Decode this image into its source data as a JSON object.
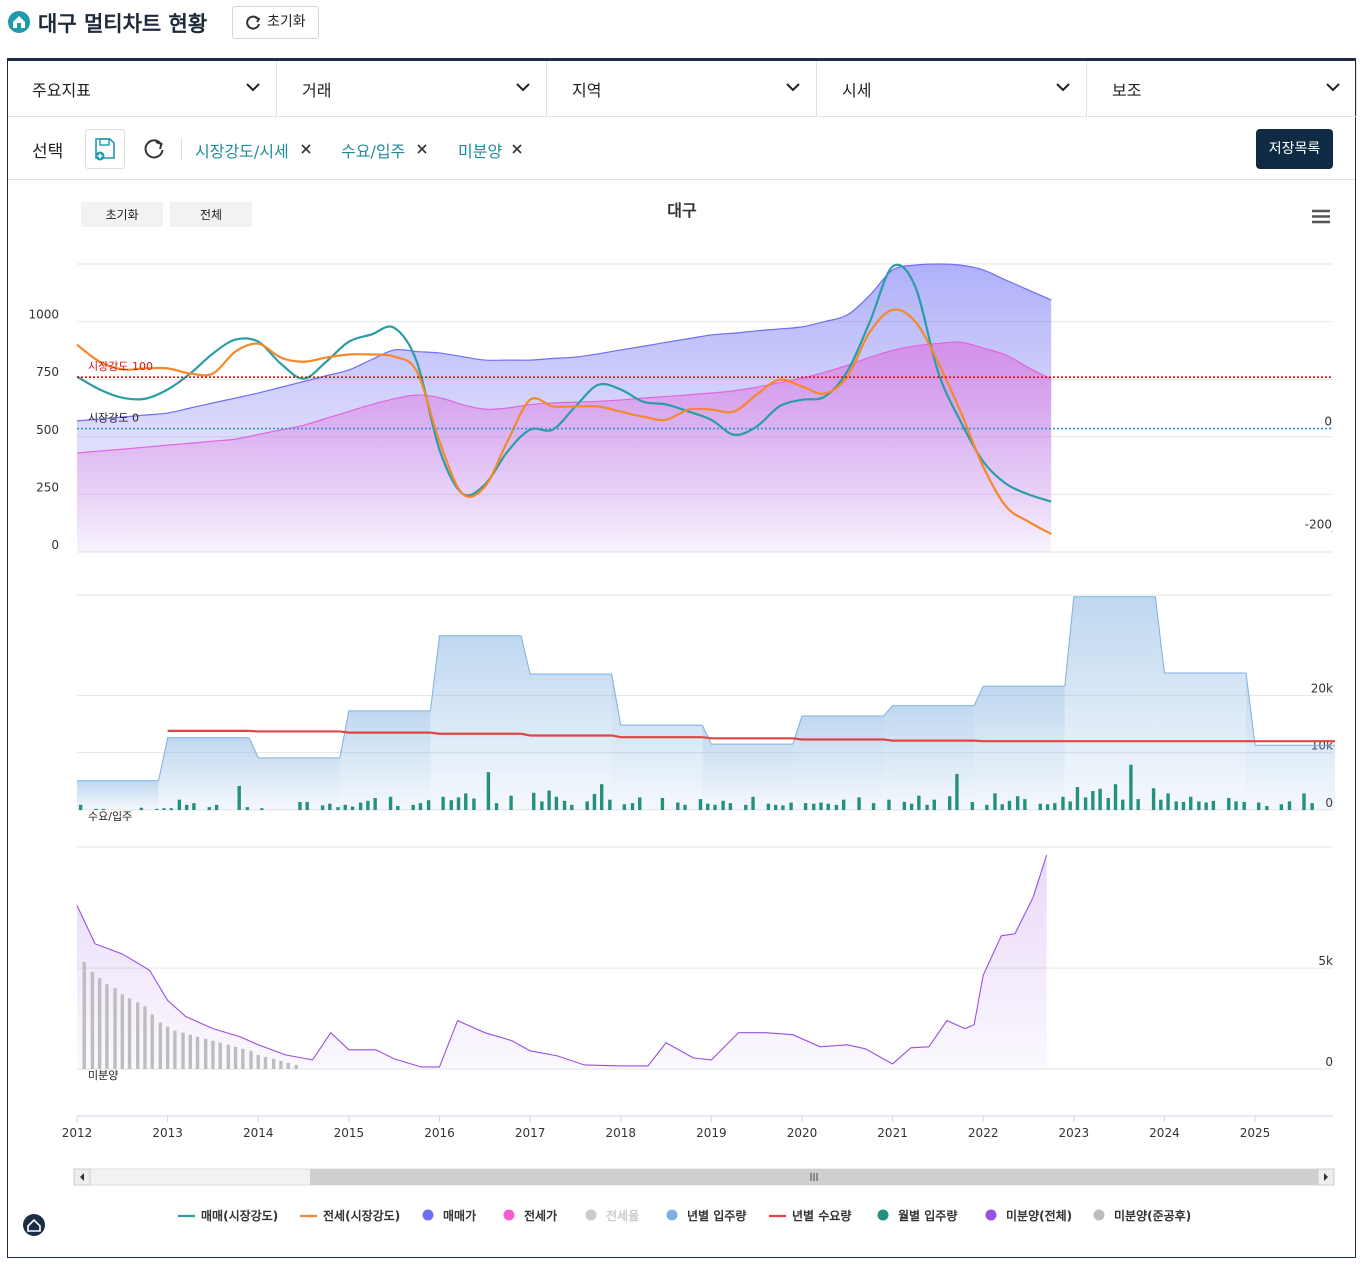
{
  "header": {
    "title": "대구 멀티차트 현황",
    "reset": "초기화"
  },
  "menus": [
    "주요지표",
    "거래",
    "지역",
    "시세",
    "보조"
  ],
  "selection": {
    "label": "선택",
    "tags": [
      "시장강도/시세",
      "수요/입주",
      "미분양"
    ],
    "saved": "저장목록"
  },
  "chart_data": {
    "type": "multi",
    "title": "대구",
    "buttons": [
      "초기화",
      "전체"
    ],
    "xlim": [
      2012,
      2025.86
    ],
    "xticks": [
      2012,
      2013,
      2014,
      2015,
      2016,
      2017,
      2018,
      2019,
      2020,
      2021,
      2022,
      2023,
      2024,
      2025
    ],
    "panels": [
      {
        "ylim": [
          0,
          1250
        ],
        "yticks": [
          0,
          250,
          500,
          750,
          1000
        ],
        "yaxis": "left",
        "y2lim": [
          -240,
          320
        ],
        "y2ticks": [
          -200,
          0
        ],
        "reference_lines": [
          {
            "value": 100,
            "label": "시장강도 100",
            "color": "#e01010",
            "axis": "y2"
          },
          {
            "value": 0,
            "label": "시장강도 0",
            "color": "#3a8fd8",
            "axis": "y2"
          }
        ],
        "x": [
          2012,
          2012.25,
          2012.5,
          2012.75,
          2013,
          2013.25,
          2013.5,
          2013.75,
          2014,
          2014.25,
          2014.5,
          2014.75,
          2015,
          2015.25,
          2015.5,
          2015.75,
          2016,
          2016.25,
          2016.5,
          2016.75,
          2017,
          2017.25,
          2017.5,
          2017.75,
          2018,
          2018.25,
          2018.5,
          2018.75,
          2019,
          2019.25,
          2019.5,
          2019.75,
          2020,
          2020.25,
          2020.5,
          2020.75,
          2021,
          2021.25,
          2021.5,
          2021.75,
          2022,
          2022.25,
          2022.5,
          2022.75
        ],
        "series": [
          {
            "type": "area",
            "smooth": true,
            "color": "#6f6ff5",
            "values": [
              569,
              577,
              586,
              594,
              603,
              625,
              647,
              668,
              690,
              715,
              740,
              765,
              790,
              835,
              877,
              870,
              864,
              848,
              833,
              833,
              833,
              840,
              846,
              860,
              877,
              893,
              910,
              926,
              942,
              950,
              960,
              968,
              977,
              1000,
              1029,
              1115,
              1224,
              1245,
              1250,
              1245,
              1224,
              1180,
              1137,
              1094
            ]
          },
          {
            "type": "area",
            "smooth": true,
            "color": "#e066dc",
            "values": [
              430,
              438,
              446,
              455,
              464,
              472,
              481,
              490,
              510,
              530,
              550,
              580,
              610,
              640,
              665,
              681,
              670,
              640,
              620,
              625,
              640,
              647,
              650,
              654,
              660,
              668,
              675,
              682,
              690,
              700,
              715,
              735,
              755,
              780,
              810,
              845,
              875,
              895,
              905,
              911,
              885,
              855,
              800,
              750
            ]
          },
          {
            "type": "line",
            "smooth": true,
            "axis": "y2",
            "color": "#2a9da6",
            "values": [
              101,
              76,
              60,
              58,
              76,
              107,
              146,
              173,
              169,
              126,
              97,
              130,
              169,
              183,
              196,
              130,
              -41,
              -126,
              -109,
              -45,
              -2,
              -2,
              43,
              85,
              76,
              52,
              47,
              33,
              17,
              -12,
              4,
              43,
              56,
              62,
              111,
              208,
              315,
              276,
              111,
              14,
              -64,
              -107,
              -128,
              -142
            ]
          },
          {
            "type": "line",
            "smooth": true,
            "axis": "y2",
            "color": "#f5892a",
            "values": [
              163,
              130,
              115,
              117,
              117,
              107,
              107,
              150,
              165,
              138,
              130,
              138,
              144,
              144,
              140,
              111,
              -25,
              -126,
              -113,
              -25,
              56,
              43,
              43,
              43,
              33,
              23,
              17,
              37,
              37,
              33,
              66,
              95,
              82,
              68,
              101,
              188,
              231,
              208,
              130,
              33,
              -74,
              -151,
              -181,
              -205
            ]
          }
        ]
      },
      {
        "ylim": [
          0,
          37500
        ],
        "yticks": [
          0,
          {
            "value": 10000,
            "label": "10k"
          },
          {
            "value": 20000,
            "label": "20k"
          }
        ],
        "yaxis": "right",
        "annotation": "수요/입주",
        "x": [
          2012,
          2013,
          2014,
          2015,
          2016,
          2017,
          2018,
          2019,
          2020,
          2021,
          2022,
          2023,
          2024,
          2025
        ],
        "series": [
          {
            "type": "step",
            "fill": true,
            "color": "#7fb0e0",
            "values": [
              5100,
              12600,
              9100,
              17300,
              30400,
              23700,
              14800,
              11500,
              16400,
              18200,
              21600,
              37200,
              23900,
              11300
            ]
          },
          {
            "type": "step",
            "fill": false,
            "color": "#e04444",
            "values": [
              null,
              13800,
              13700,
              13500,
              13300,
              13000,
              12700,
              12500,
              12300,
              12100,
              12000,
              12000,
              12000,
              12000
            ]
          },
          {
            "type": "bar",
            "color": "#26907f",
            "x": [
              2012.04,
              2012.13,
              2012.21,
              2012.29,
              2012.38,
              2012.46,
              2012.54,
              2012.63,
              2012.71,
              2012.79,
              2012.88,
              2012.96,
              2013.04,
              2013.13,
              2013.21,
              2013.29,
              2013.38,
              2013.46,
              2013.54,
              2013.63,
              2013.71,
              2013.79,
              2013.88,
              2013.96,
              2014.04,
              2014.13,
              2014.21,
              2014.29,
              2014.38,
              2014.46,
              2014.54,
              2014.63,
              2014.71,
              2014.79,
              2014.88,
              2014.96,
              2015.04,
              2015.13,
              2015.21,
              2015.29,
              2015.38,
              2015.46,
              2015.54,
              2015.63,
              2015.71,
              2015.79,
              2015.88,
              2015.96,
              2016.04,
              2016.13,
              2016.21,
              2016.29,
              2016.38,
              2016.46,
              2016.54,
              2016.63,
              2016.71,
              2016.79,
              2016.88,
              2016.96,
              2017.04,
              2017.13,
              2017.21,
              2017.29,
              2017.38,
              2017.46,
              2017.54,
              2017.63,
              2017.71,
              2017.79,
              2017.88,
              2017.96,
              2018.04,
              2018.13,
              2018.21,
              2018.29,
              2018.38,
              2018.46,
              2018.54,
              2018.63,
              2018.71,
              2018.79,
              2018.88,
              2018.96,
              2019.04,
              2019.13,
              2019.21,
              2019.29,
              2019.38,
              2019.46,
              2019.54,
              2019.63,
              2019.71,
              2019.79,
              2019.88,
              2019.96,
              2020.04,
              2020.13,
              2020.21,
              2020.29,
              2020.38,
              2020.46,
              2020.54,
              2020.63,
              2020.71,
              2020.79,
              2020.88,
              2020.96,
              2021.04,
              2021.13,
              2021.21,
              2021.29,
              2021.38,
              2021.46,
              2021.54,
              2021.63,
              2021.71,
              2021.79,
              2021.88,
              2021.96,
              2022.04,
              2022.13,
              2022.21,
              2022.29,
              2022.38,
              2022.46,
              2022.54,
              2022.63,
              2022.71,
              2022.79,
              2022.88,
              2022.96,
              2023.04,
              2023.13,
              2023.21,
              2023.29,
              2023.38,
              2023.46,
              2023.54,
              2023.63,
              2023.71,
              2023.79,
              2023.88,
              2023.96,
              2024.04,
              2024.13,
              2024.21,
              2024.29,
              2024.38,
              2024.46,
              2024.54,
              2024.63,
              2024.71,
              2024.79,
              2024.88,
              2024.96,
              2025.04,
              2025.13,
              2025.21,
              2025.29,
              2025.38,
              2025.46,
              2025.54,
              2025.63,
              2025.71,
              2025.79,
              2025.88,
              2025.96
            ],
            "values": [
              900,
              0,
              200,
              200,
              0,
              0,
              0,
              0,
              400,
              0,
              200,
              300,
              300,
              1800,
              900,
              1200,
              0,
              500,
              900,
              0,
              0,
              4200,
              500,
              0,
              300,
              0,
              0,
              0,
              0,
              1400,
              1400,
              0,
              800,
              1100,
              500,
              900,
              600,
              1300,
              1600,
              2100,
              0,
              2300,
              700,
              0,
              900,
              1200,
              1700,
              0,
              2300,
              1700,
              2200,
              2900,
              2000,
              0,
              6600,
              1200,
              0,
              2500,
              0,
              0,
              3000,
              1500,
              3400,
              2300,
              1600,
              900,
              0,
              1500,
              2800,
              4500,
              1800,
              0,
              1000,
              1200,
              2200,
              0,
              0,
              2100,
              0,
              1300,
              900,
              0,
              1900,
              1100,
              900,
              1600,
              1200,
              0,
              900,
              2300,
              0,
              1100,
              900,
              800,
              1300,
              0,
              1200,
              1100,
              1300,
              1100,
              900,
              1800,
              0,
              2200,
              0,
              1200,
              0,
              1800,
              0,
              1400,
              1100,
              2500,
              900,
              1800,
              0,
              2400,
              6300,
              0,
              1400,
              0,
              900,
              2900,
              1000,
              1600,
              2400,
              1900,
              0,
              1100,
              1000,
              1200,
              2300,
              1500,
              4000,
              2200,
              3300,
              3700,
              2100,
              4500,
              1800,
              7900,
              1900,
              0,
              3800,
              1800,
              2900,
              1500,
              1400,
              2300,
              1500,
              1300,
              1600,
              0,
              2100,
              1500,
              1400,
              0,
              1300,
              700,
              0,
              1000,
              1500,
              0,
              2900,
              1200,
              0,
              0,
              0,
              0
            ]
          }
        ]
      },
      {
        "ylim": [
          0,
          11000
        ],
        "yticks": [
          0,
          {
            "value": 5000,
            "label": "5k"
          }
        ],
        "yaxis": "right",
        "annotation": "미분양",
        "series": [
          {
            "type": "area",
            "smooth": false,
            "color": "#9a50e0",
            "x": [
              2012,
              2012.2,
              2012.5,
              2012.8,
              2013,
              2013.2,
              2013.5,
              2013.8,
              2014,
              2014.3,
              2014.6,
              2014.8,
              2015,
              2015.3,
              2015.5,
              2015.8,
              2016,
              2016.2,
              2016.5,
              2016.8,
              2017,
              2017.3,
              2017.6,
              2018,
              2018.3,
              2018.5,
              2018.8,
              2019,
              2019.3,
              2019.6,
              2019.9,
              2020.2,
              2020.5,
              2020.7,
              2021,
              2021.2,
              2021.4,
              2021.6,
              2021.8,
              2021.9,
              2022,
              2022.2,
              2022.35,
              2022.55,
              2022.7
            ],
            "values": [
              8100,
              6200,
              5700,
              4900,
              3400,
              2600,
              2000,
              1600,
              1200,
              700,
              450,
              1800,
              950,
              950,
              500,
              100,
              100,
              2400,
              1800,
              1400,
              900,
              650,
              200,
              150,
              150,
              1300,
              550,
              450,
              1800,
              1800,
              1700,
              1100,
              1200,
              1000,
              250,
              1050,
              1100,
              2400,
              2000,
              2200,
              4650,
              6600,
              6700,
              8500,
              10600
            ]
          },
          {
            "type": "bar",
            "color": "#bdbdbd",
            "x": [
              2012.08,
              2012.17,
              2012.25,
              2012.33,
              2012.42,
              2012.5,
              2012.58,
              2012.67,
              2012.75,
              2012.83,
              2012.92,
              2013,
              2013.08,
              2013.17,
              2013.25,
              2013.33,
              2013.42,
              2013.5,
              2013.58,
              2013.67,
              2013.75,
              2013.83,
              2013.92,
              2014,
              2014.08,
              2014.17,
              2014.25,
              2014.33,
              2014.42
            ],
            "values": [
              5300,
              4800,
              4500,
              4200,
              4000,
              3700,
              3500,
              3300,
              3100,
              2700,
              2300,
              2100,
              1900,
              1800,
              1700,
              1600,
              1500,
              1400,
              1300,
              1200,
              1100,
              1000,
              900,
              700,
              600,
              500,
              400,
              300,
              200
            ]
          }
        ]
      }
    ],
    "legend": [
      {
        "name": "매매(시장강도)",
        "color": "#2a9da6",
        "marker": "line"
      },
      {
        "name": "전세(시장강도)",
        "color": "#f5892a",
        "marker": "line"
      },
      {
        "name": "매매가",
        "color": "#6f6ff5",
        "marker": "dot"
      },
      {
        "name": "전세가",
        "color": "#f060d0",
        "marker": "dot"
      },
      {
        "name": "전세율",
        "color": "#cccccc",
        "marker": "dot",
        "hidden": true
      },
      {
        "name": "년별 입주량",
        "color": "#7fb0e0",
        "marker": "dot"
      },
      {
        "name": "년별 수요량",
        "color": "#e04444",
        "marker": "line"
      },
      {
        "name": "월별 입주량",
        "color": "#26907f",
        "marker": "dot"
      },
      {
        "name": "미분양(전체)",
        "color": "#9a50e0",
        "marker": "dot"
      },
      {
        "name": "미분양(준공후)",
        "color": "#bdbdbd",
        "marker": "dot"
      }
    ]
  }
}
